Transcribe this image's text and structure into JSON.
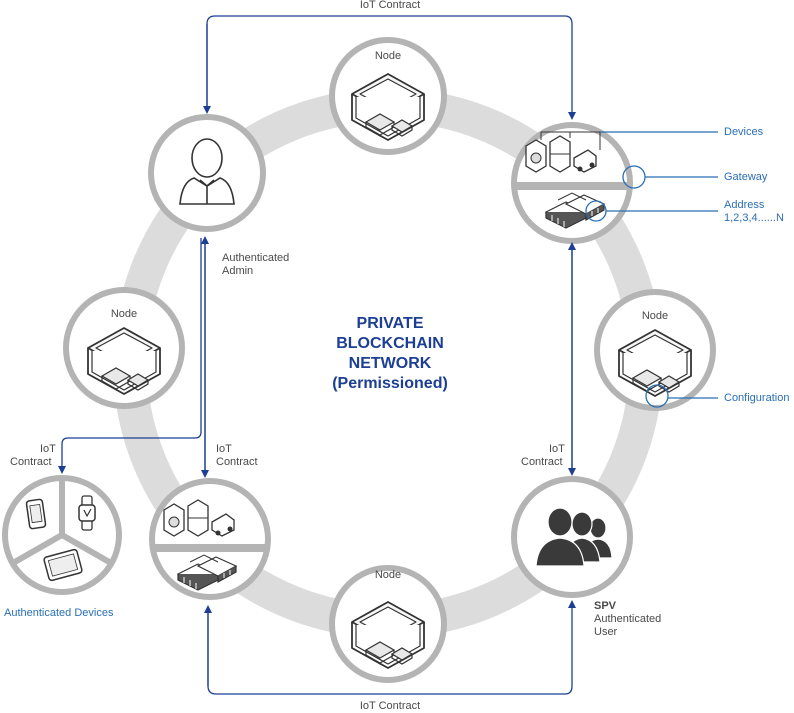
{
  "title": {
    "line1": "PRIVATE",
    "line2": "BLOCKCHAIN",
    "line3": "NETWORK",
    "line4": "(Permissioned)"
  },
  "nodes": {
    "top": "Node",
    "left": "Node",
    "right": "Node",
    "bottom": "Node"
  },
  "contracts": {
    "top": "IoT Contract",
    "bottom": "IoT Contract",
    "left": [
      "IoT",
      "Contract"
    ],
    "middle": [
      "IoT",
      "Contract"
    ],
    "right": [
      "IoT",
      "Contract"
    ]
  },
  "admin": {
    "label_line1": "Authenticated",
    "label_line2": "Admin"
  },
  "callouts": {
    "devices": "Devices",
    "gateway": "Gateway",
    "address_line1": "Address",
    "address_line2": "1,2,3,4......N",
    "configuration": "Configuration"
  },
  "authenticated_devices": "Authenticated Devices",
  "spv": {
    "title": "SPV",
    "line2": "Authenticated",
    "line3": "User"
  },
  "colors": {
    "ring": "#dcdcdc",
    "circle_border": "#b4b4b4",
    "arrow": "#1c3f94",
    "callout": "#2a6fb5",
    "title": "#1c3f94"
  },
  "icons": {
    "node": "server-box-icon",
    "admin": "user-icon",
    "gateway_cluster": "devices-gateway-icon",
    "spv": "user-group-icon",
    "devices": [
      "phone-icon",
      "watch-icon",
      "tablet-icon"
    ]
  }
}
